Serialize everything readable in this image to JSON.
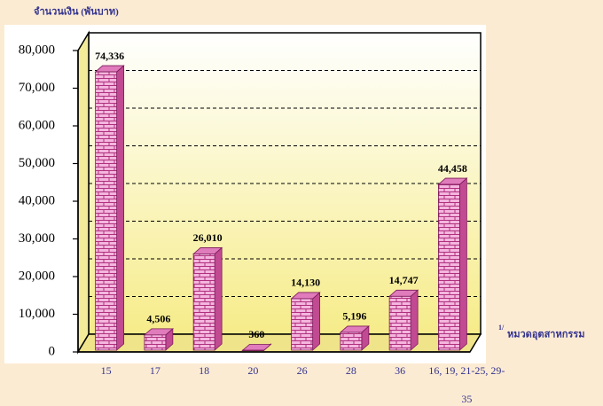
{
  "chart_data": {
    "type": "bar",
    "y_label": "จำนวนเงิน (พันบาท)",
    "x_label": "หมวดอุตสาหกรรม",
    "x_label_note": "1/",
    "categories": [
      "15",
      "17",
      "18",
      "20",
      "26",
      "28",
      "36",
      "16, 19, 21-25, 29-35"
    ],
    "values": [
      74336,
      4506,
      26010,
      360,
      14130,
      5196,
      14747,
      44458
    ],
    "value_labels": [
      "74,336",
      "4,506",
      "26,010",
      "360",
      "14,130",
      "5,196",
      "14,747",
      "44,458"
    ],
    "color": "#f4b6de",
    "ylim": [
      0,
      80000
    ],
    "yticks": [
      {
        "value": 0,
        "label": "0"
      },
      {
        "value": 10000,
        "label": "10,000"
      },
      {
        "value": 20000,
        "label": "20,000"
      },
      {
        "value": 30000,
        "label": "30,000"
      },
      {
        "value": 40000,
        "label": "40,000"
      },
      {
        "value": 50000,
        "label": "50,000"
      },
      {
        "value": 60000,
        "label": "60,000"
      },
      {
        "value": 70000,
        "label": "70,000"
      },
      {
        "value": 80000,
        "label": "80,000"
      }
    ],
    "grid": true
  }
}
